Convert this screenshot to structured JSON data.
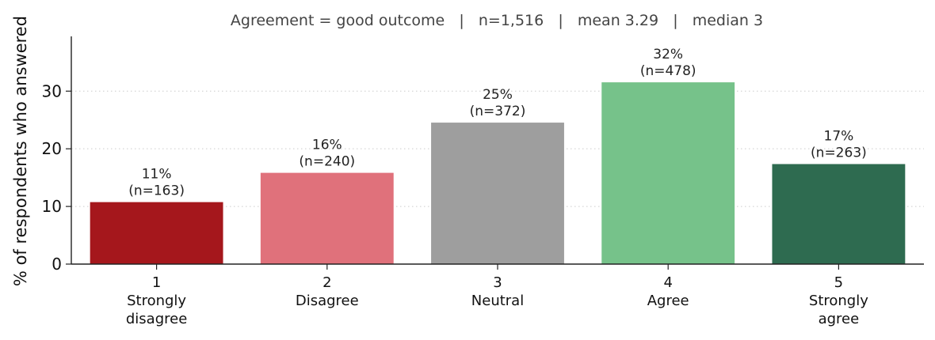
{
  "chart_data": {
    "type": "bar",
    "title": "Agreement = good outcome   |   n=1,516   |   mean 3.29   |   median 3",
    "xlabel": "",
    "ylabel": "% of respondents who answered",
    "ylim": [
      0,
      39.5
    ],
    "yticks": [
      0,
      10,
      20,
      30
    ],
    "grid": true,
    "categories": [
      {
        "number": "1",
        "line1": "Strongly",
        "line2": "disagree"
      },
      {
        "number": "2",
        "line1": "Disagree",
        "line2": ""
      },
      {
        "number": "3",
        "line1": "Neutral",
        "line2": ""
      },
      {
        "number": "4",
        "line1": "Agree",
        "line2": ""
      },
      {
        "number": "5",
        "line1": "Strongly",
        "line2": "agree"
      }
    ],
    "values": [
      10.75,
      15.83,
      24.54,
      31.53,
      17.35
    ],
    "data_labels": [
      {
        "pct": "11%",
        "n": "(n=163)"
      },
      {
        "pct": "16%",
        "n": "(n=240)"
      },
      {
        "pct": "25%",
        "n": "(n=372)"
      },
      {
        "pct": "32%",
        "n": "(n=478)"
      },
      {
        "pct": "17%",
        "n": "(n=263)"
      }
    ],
    "colors": [
      "#a5171c",
      "#e0717b",
      "#9e9e9e",
      "#76c28a",
      "#2e6b50"
    ]
  }
}
